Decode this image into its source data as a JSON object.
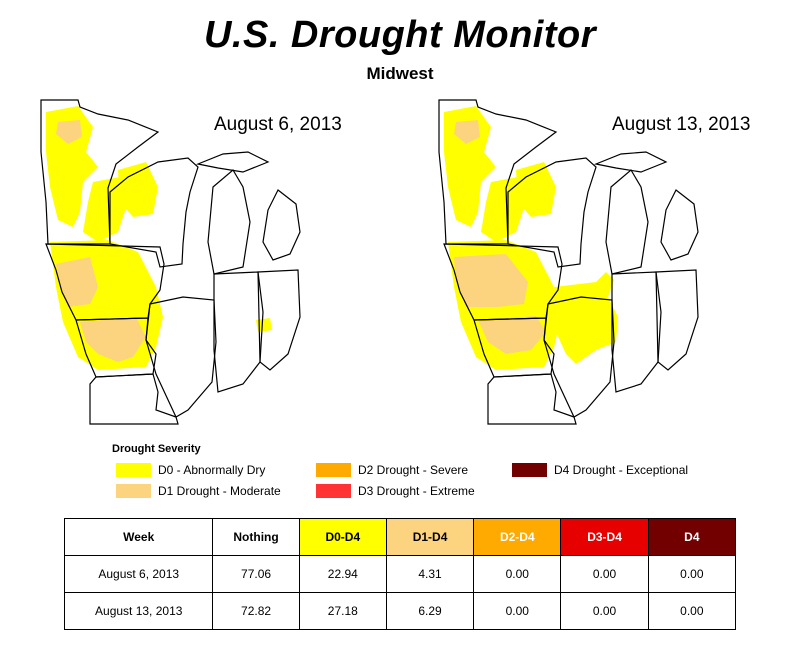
{
  "header": {
    "title": "U.S. Drought Monitor",
    "subtitle": "Midwest"
  },
  "maps": [
    {
      "date": "August 6, 2013"
    },
    {
      "date": "August 13, 2013"
    }
  ],
  "colors": {
    "D0": "#ffff00",
    "D1": "#fcd37f",
    "D2": "#ffaa00",
    "D3": "#e60000",
    "D4": "#730000",
    "D3_legend": "#ff3333",
    "border": "#000000"
  },
  "legend": {
    "title": "Drought Severity",
    "items": [
      {
        "code": "D0",
        "label": "D0 - Abnormally Dry"
      },
      {
        "code": "D1",
        "label": "D1 Drought - Moderate"
      },
      {
        "code": "D2",
        "label": "D2 Drought - Severe"
      },
      {
        "code": "D3",
        "label": "D3 Drought - Extreme"
      },
      {
        "code": "D4",
        "label": "D4 Drought - Exceptional"
      }
    ]
  },
  "table": {
    "headers": [
      "Week",
      "Nothing",
      "D0-D4",
      "D1-D4",
      "D2-D4",
      "D3-D4",
      "D4"
    ],
    "header_colors": [
      "#ffffff",
      "#ffffff",
      "#ffff00",
      "#fcd37f",
      "#ffaa00",
      "#e60000",
      "#730000"
    ],
    "header_text_colors": [
      "#000000",
      "#000000",
      "#000000",
      "#000000",
      "#ffffff",
      "#ffffff",
      "#ffffff"
    ],
    "rows": [
      [
        "August 6, 2013",
        "77.06",
        "22.94",
        "4.31",
        "0.00",
        "0.00",
        "0.00"
      ],
      [
        "August 13, 2013",
        "72.82",
        "27.18",
        "6.29",
        "0.00",
        "0.00",
        "0.00"
      ]
    ]
  }
}
